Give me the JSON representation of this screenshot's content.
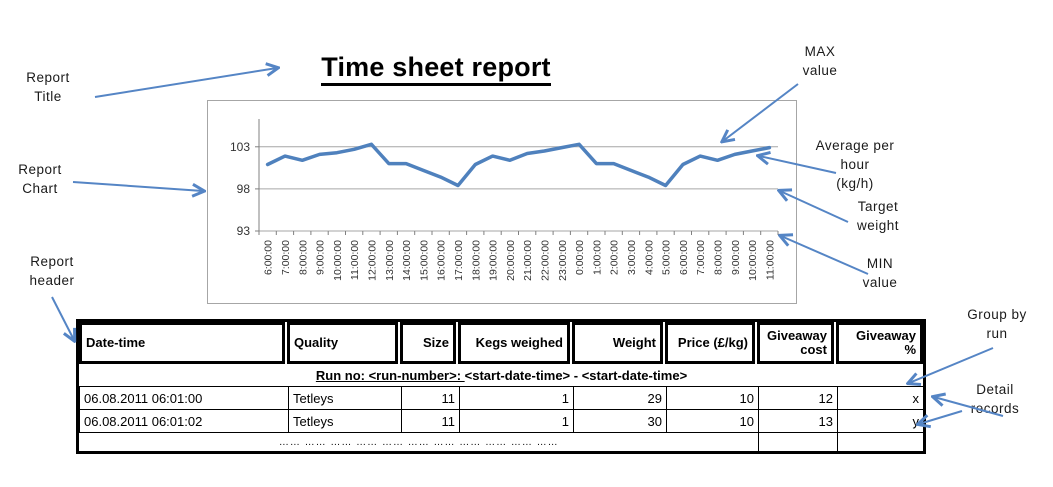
{
  "title": "Time sheet report",
  "colors": {
    "chart_line": "#4F81BD",
    "arrow": "#5585C5",
    "grid": "#A6A6A6",
    "axis": "#808080"
  },
  "annotations": {
    "report_title": [
      "Report",
      "Title"
    ],
    "report_chart": [
      "Report",
      "Chart"
    ],
    "report_header": [
      "Report",
      "header"
    ],
    "max_value": [
      "MAX",
      "value"
    ],
    "average_per_hour": [
      "Average per",
      "hour",
      "(kg/h)"
    ],
    "target_weight": [
      "Target",
      "weight"
    ],
    "min_value": [
      "MIN",
      "value"
    ],
    "group_by_run": [
      "Group by",
      "run"
    ],
    "detail_records": [
      "Detail",
      "records"
    ]
  },
  "chart_data": {
    "type": "line",
    "x": [
      "6:00:00",
      "7:00:00",
      "8:00:00",
      "9:00:00",
      "10:00:00",
      "11:00:00",
      "12:00:00",
      "13:00:00",
      "14:00:00",
      "15:00:00",
      "16:00:00",
      "17:00:00",
      "18:00:00",
      "19:00:00",
      "20:00:00",
      "21:00:00",
      "22:00:00",
      "23:00:00",
      "0:00:00",
      "1:00:00",
      "2:00:00",
      "3:00:00",
      "4:00:00",
      "5:00:00",
      "6:00:00",
      "7:00:00",
      "8:00:00",
      "9:00:00",
      "10:00:00",
      "11:00:00"
    ],
    "series": [
      {
        "name": "Average per hour (kg/h)",
        "values": [
          100.9,
          101.9,
          101.4,
          102.1,
          102.3,
          102.7,
          103.3,
          101.0,
          101.0,
          100.2,
          99.4,
          98.4,
          100.9,
          101.9,
          101.4,
          102.2,
          102.5,
          102.9,
          103.3,
          101.0,
          101.0,
          100.2,
          99.4,
          98.4,
          100.9,
          101.9,
          101.4,
          102.1,
          102.5,
          102.9
        ]
      }
    ],
    "yticks": [
      93,
      98,
      103
    ],
    "ylim": [
      93,
      106.3
    ],
    "grid": true,
    "legend_position": "none",
    "target_weight_gridline": 98
  },
  "table": {
    "columns": [
      {
        "label": "Date-time",
        "align": "left"
      },
      {
        "label": "Quality",
        "align": "left"
      },
      {
        "label": "Size",
        "align": "right"
      },
      {
        "label": "Kegs weighed",
        "align": "right"
      },
      {
        "label": "Weight",
        "align": "right"
      },
      {
        "label": "Price (£/kg)",
        "align": "right"
      },
      {
        "label": "Giveaway cost",
        "align": "right"
      },
      {
        "label": "Giveaway %",
        "align": "right"
      }
    ],
    "run_row": {
      "label_underlined": "Run no: <run-number>: ",
      "label_rest": "<start-date-time>  - <start-date-time>"
    },
    "rows": [
      [
        "06.08.2011 06:01:00",
        "Tetleys",
        "11",
        "1",
        "29",
        "10",
        "12",
        "x"
      ],
      [
        "06.08.2011 06:01:02",
        "Tetleys",
        "11",
        "1",
        "30",
        "10",
        "13",
        "y"
      ]
    ],
    "ellipsis": "…… …… …… …… …… …… …… …… …… …… ……"
  }
}
